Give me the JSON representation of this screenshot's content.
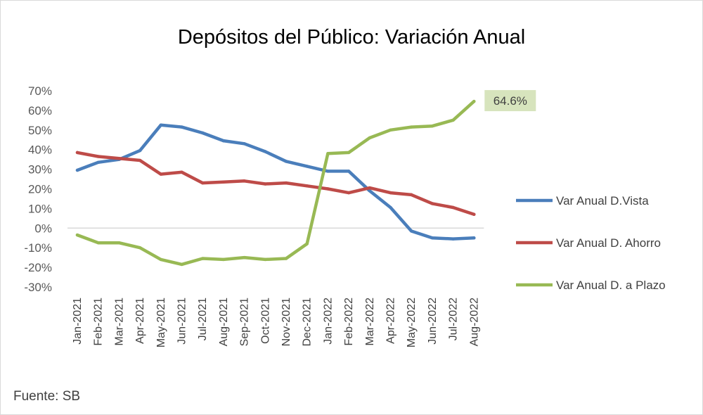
{
  "title": "Depósitos del Público: Variación Anual",
  "source": "Fuente: SB",
  "chart_data": {
    "type": "line",
    "title": "Depósitos del Público: Variación Anual",
    "xlabel": "",
    "ylabel": "",
    "categories": [
      "Jan-2021",
      "Feb-2021",
      "Mar-2021",
      "Apr-2021",
      "May-2021",
      "Jun-2021",
      "Jul-2021",
      "Aug-2021",
      "Sep-2021",
      "Oct-2021",
      "Nov-2021",
      "Dec-2021",
      "Jan-2022",
      "Feb-2022",
      "Mar-2022",
      "Apr-2022",
      "May-2022",
      "Jun-2022",
      "Jul-2022",
      "Aug-2022"
    ],
    "ylim": [
      -30,
      70
    ],
    "yticks": [
      70,
      60,
      50,
      40,
      30,
      20,
      10,
      0,
      -10,
      -20,
      -30
    ],
    "ytick_labels": [
      "70%",
      "60%",
      "50%",
      "40%",
      "30%",
      "20%",
      "10%",
      "0%",
      "-10%",
      "-20%",
      "-30%"
    ],
    "series": [
      {
        "name": "Var Anual D.Vista",
        "color": "#4a7ebb",
        "values": [
          29.5,
          33.5,
          35.0,
          39.5,
          52.5,
          51.5,
          48.5,
          44.5,
          43.0,
          39.0,
          34.0,
          31.5,
          29.0,
          29.0,
          19.0,
          10.5,
          -1.5,
          -5.0,
          -5.5,
          -5.0
        ]
      },
      {
        "name": "Var Anual D. Ahorro",
        "color": "#be4b48",
        "values": [
          38.5,
          36.5,
          35.5,
          34.5,
          27.5,
          28.5,
          23.0,
          23.5,
          24.0,
          22.5,
          23.0,
          21.5,
          20.0,
          18.0,
          20.5,
          18.0,
          17.0,
          12.5,
          10.5,
          7.0
        ]
      },
      {
        "name": "Var Anual D. a Plazo",
        "color": "#98b954",
        "values": [
          -3.5,
          -7.5,
          -7.5,
          -10.0,
          -16.0,
          -18.5,
          -15.5,
          -16.0,
          -15.0,
          -16.0,
          -15.5,
          -8.0,
          38.0,
          38.5,
          46.0,
          50.0,
          51.5,
          52.0,
          55.0,
          64.6
        ]
      }
    ],
    "annotation": {
      "label": "64.6%",
      "series": 2,
      "index": 19,
      "background": "#d7e4bd"
    },
    "legend_position": "right",
    "grid": false,
    "zero_line": true
  }
}
